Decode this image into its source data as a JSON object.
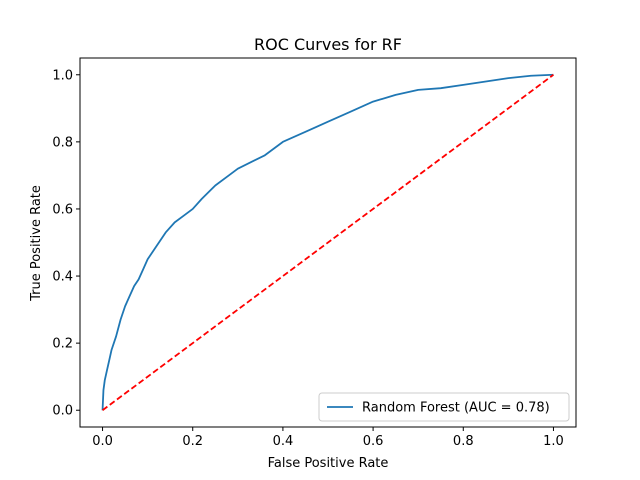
{
  "chart_data": {
    "type": "line",
    "title": "ROC Curves for RF",
    "xlabel": "False Positive Rate",
    "ylabel": "True Positive Rate",
    "xlim": [
      -0.05,
      1.05
    ],
    "ylim": [
      -0.05,
      1.05
    ],
    "xticks": [
      "0.0",
      "0.2",
      "0.4",
      "0.6",
      "0.8",
      "1.0"
    ],
    "yticks": [
      "0.0",
      "0.2",
      "0.4",
      "0.6",
      "0.8",
      "1.0"
    ],
    "grid": false,
    "legend_position": "lower right",
    "series": [
      {
        "name": "Random Forest (AUC = 0.78)",
        "color": "#1f77b4",
        "style": "solid",
        "x": [
          0.0,
          0.002,
          0.005,
          0.01,
          0.015,
          0.02,
          0.03,
          0.04,
          0.05,
          0.06,
          0.07,
          0.08,
          0.09,
          0.1,
          0.12,
          0.14,
          0.16,
          0.18,
          0.2,
          0.22,
          0.25,
          0.28,
          0.3,
          0.33,
          0.36,
          0.4,
          0.45,
          0.5,
          0.55,
          0.6,
          0.65,
          0.7,
          0.75,
          0.8,
          0.85,
          0.9,
          0.95,
          1.0
        ],
        "y": [
          0.0,
          0.06,
          0.09,
          0.12,
          0.15,
          0.18,
          0.22,
          0.27,
          0.31,
          0.34,
          0.37,
          0.39,
          0.42,
          0.45,
          0.49,
          0.53,
          0.56,
          0.58,
          0.6,
          0.63,
          0.67,
          0.7,
          0.72,
          0.74,
          0.76,
          0.8,
          0.83,
          0.86,
          0.89,
          0.92,
          0.94,
          0.955,
          0.96,
          0.97,
          0.98,
          0.99,
          0.997,
          1.0
        ]
      },
      {
        "name": "",
        "color": "#ff0000",
        "style": "dashed",
        "x": [
          0.0,
          1.0
        ],
        "y": [
          0.0,
          1.0
        ]
      }
    ]
  }
}
